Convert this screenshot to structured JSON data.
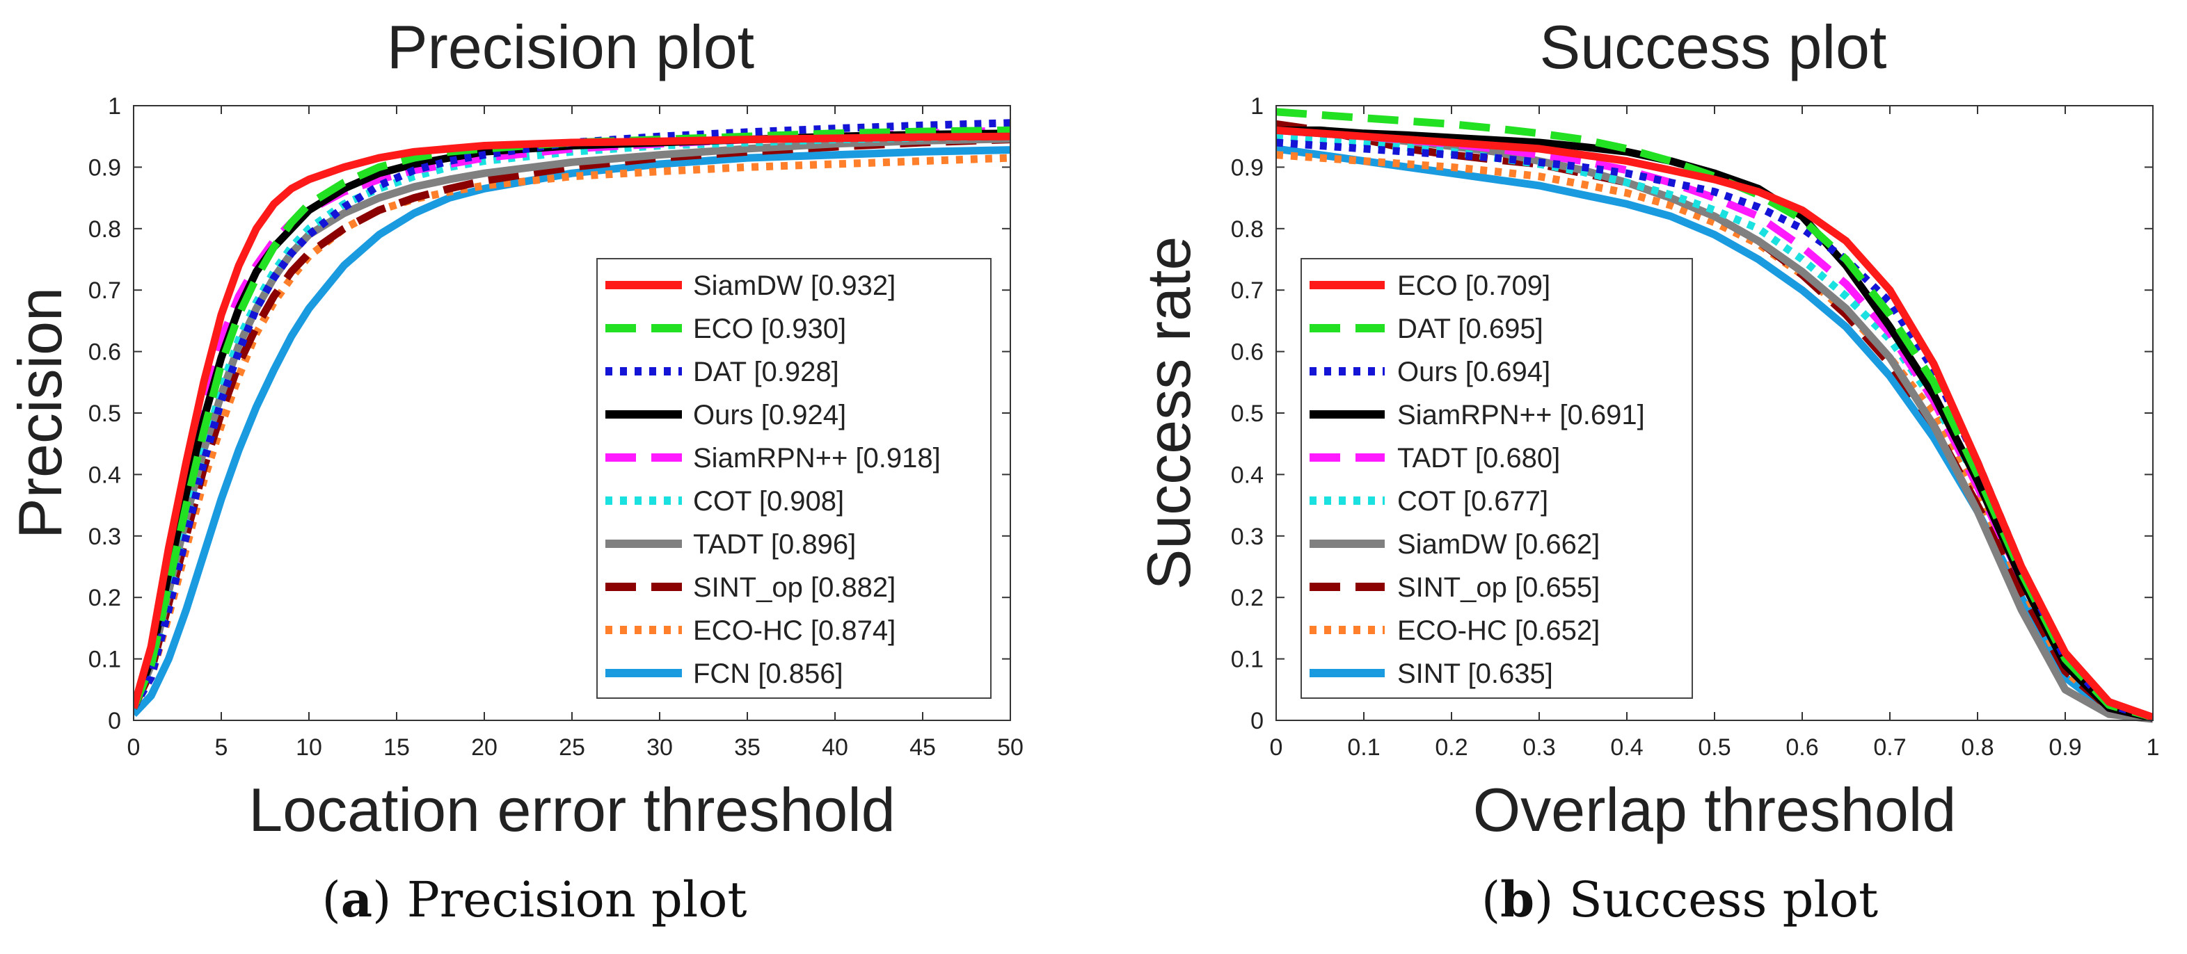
{
  "chart_data": [
    {
      "type": "line",
      "title": "Precision plot",
      "xlabel": "Location error threshold",
      "ylabel": "Precision",
      "xlim": [
        0,
        50
      ],
      "ylim": [
        0,
        1
      ],
      "x_ticks": [
        "0",
        "5",
        "10",
        "15",
        "20",
        "25",
        "30",
        "35",
        "40",
        "45",
        "50"
      ],
      "y_ticks": [
        "0",
        "0.1",
        "0.2",
        "0.3",
        "0.4",
        "0.5",
        "0.6",
        "0.7",
        "0.8",
        "0.9",
        "1"
      ],
      "grid": false,
      "legend_position": "bottom-right",
      "caption_letter": "a",
      "caption_text": "Precision plot",
      "x": [
        0,
        1,
        2,
        3,
        4,
        5,
        6,
        7,
        8,
        9,
        10,
        12,
        14,
        16,
        18,
        20,
        25,
        30,
        35,
        40,
        45,
        50
      ],
      "series": [
        {
          "name": "SiamDW [0.932]",
          "color": "#ff1a1a",
          "dash": "solid",
          "values": [
            0.02,
            0.12,
            0.28,
            0.42,
            0.55,
            0.66,
            0.74,
            0.8,
            0.84,
            0.865,
            0.88,
            0.9,
            0.915,
            0.925,
            0.93,
            0.935,
            0.94,
            0.942,
            0.945,
            0.947,
            0.949,
            0.95
          ]
        },
        {
          "name": "ECO [0.930]",
          "color": "#22e022",
          "dash": "longdash",
          "values": [
            0.02,
            0.09,
            0.22,
            0.35,
            0.47,
            0.58,
            0.66,
            0.72,
            0.77,
            0.81,
            0.84,
            0.875,
            0.9,
            0.915,
            0.925,
            0.93,
            0.94,
            0.945,
            0.95,
            0.955,
            0.958,
            0.96
          ]
        },
        {
          "name": "DAT [0.928]",
          "color": "#1414d6",
          "dash": "dot",
          "values": [
            0.02,
            0.07,
            0.18,
            0.3,
            0.42,
            0.52,
            0.6,
            0.67,
            0.72,
            0.76,
            0.79,
            0.835,
            0.87,
            0.895,
            0.91,
            0.92,
            0.94,
            0.95,
            0.957,
            0.963,
            0.968,
            0.972
          ]
        },
        {
          "name": "Ours [0.924]",
          "color": "#000000",
          "dash": "solid",
          "values": [
            0.02,
            0.1,
            0.24,
            0.37,
            0.49,
            0.59,
            0.67,
            0.73,
            0.77,
            0.8,
            0.83,
            0.865,
            0.89,
            0.905,
            0.915,
            0.925,
            0.935,
            0.94,
            0.945,
            0.95,
            0.953,
            0.955
          ]
        },
        {
          "name": "SiamRPN++ [0.918]",
          "color": "#ff1aff",
          "dash": "longdash",
          "values": [
            0.02,
            0.11,
            0.26,
            0.4,
            0.52,
            0.62,
            0.69,
            0.74,
            0.78,
            0.81,
            0.83,
            0.86,
            0.88,
            0.895,
            0.905,
            0.915,
            0.93,
            0.938,
            0.945,
            0.95,
            0.955,
            0.96
          ]
        },
        {
          "name": "COT [0.908]",
          "color": "#1ae0e0",
          "dash": "dot",
          "values": [
            0.02,
            0.08,
            0.2,
            0.32,
            0.44,
            0.54,
            0.62,
            0.68,
            0.73,
            0.77,
            0.8,
            0.84,
            0.865,
            0.885,
            0.9,
            0.91,
            0.925,
            0.935,
            0.94,
            0.945,
            0.948,
            0.95
          ]
        },
        {
          "name": "TADT [0.896]",
          "color": "#808080",
          "dash": "solid",
          "values": [
            0.02,
            0.09,
            0.21,
            0.33,
            0.44,
            0.53,
            0.61,
            0.67,
            0.72,
            0.76,
            0.79,
            0.825,
            0.85,
            0.868,
            0.88,
            0.89,
            0.908,
            0.92,
            0.93,
            0.938,
            0.943,
            0.946
          ]
        },
        {
          "name": "SINT_op [0.882]",
          "color": "#8b0000",
          "dash": "longdash",
          "values": [
            0.02,
            0.08,
            0.19,
            0.3,
            0.41,
            0.5,
            0.58,
            0.64,
            0.69,
            0.73,
            0.76,
            0.8,
            0.83,
            0.85,
            0.865,
            0.878,
            0.9,
            0.915,
            0.925,
            0.933,
            0.94,
            0.945
          ]
        },
        {
          "name": "ECO-HC [0.874]",
          "color": "#ff7f2a",
          "dash": "dot",
          "values": [
            0.02,
            0.07,
            0.17,
            0.28,
            0.39,
            0.48,
            0.56,
            0.63,
            0.68,
            0.72,
            0.755,
            0.8,
            0.83,
            0.848,
            0.86,
            0.87,
            0.885,
            0.893,
            0.9,
            0.905,
            0.91,
            0.915
          ]
        },
        {
          "name": "FCN [0.856]",
          "color": "#1a9be0",
          "dash": "solid",
          "values": [
            0.01,
            0.04,
            0.1,
            0.18,
            0.27,
            0.36,
            0.44,
            0.51,
            0.57,
            0.625,
            0.67,
            0.74,
            0.79,
            0.825,
            0.85,
            0.865,
            0.89,
            0.905,
            0.915,
            0.92,
            0.925,
            0.928
          ]
        }
      ]
    },
    {
      "type": "line",
      "title": "Success plot",
      "xlabel": "Overlap threshold",
      "ylabel": "Success rate",
      "xlim": [
        0,
        1
      ],
      "ylim": [
        0,
        1
      ],
      "x_ticks": [
        "0",
        "0.1",
        "0.2",
        "0.3",
        "0.4",
        "0.5",
        "0.6",
        "0.7",
        "0.8",
        "0.9",
        "1"
      ],
      "y_ticks": [
        "0",
        "0.1",
        "0.2",
        "0.3",
        "0.4",
        "0.5",
        "0.6",
        "0.7",
        "0.8",
        "0.9",
        "1"
      ],
      "grid": false,
      "legend_position": "bottom-left",
      "caption_letter": "b",
      "caption_text": "Success plot",
      "x": [
        0,
        0.05,
        0.1,
        0.15,
        0.2,
        0.25,
        0.3,
        0.35,
        0.4,
        0.45,
        0.5,
        0.55,
        0.6,
        0.65,
        0.7,
        0.75,
        0.8,
        0.85,
        0.9,
        0.95,
        1
      ],
      "series": [
        {
          "name": "ECO [0.709]",
          "color": "#ff1a1a",
          "dash": "solid",
          "values": [
            0.96,
            0.955,
            0.95,
            0.945,
            0.94,
            0.935,
            0.93,
            0.92,
            0.91,
            0.895,
            0.88,
            0.86,
            0.83,
            0.78,
            0.7,
            0.58,
            0.42,
            0.25,
            0.11,
            0.03,
            0.005
          ]
        },
        {
          "name": "DAT [0.695]",
          "color": "#22e022",
          "dash": "longdash",
          "values": [
            0.99,
            0.985,
            0.98,
            0.975,
            0.97,
            0.963,
            0.955,
            0.945,
            0.93,
            0.91,
            0.885,
            0.855,
            0.815,
            0.75,
            0.66,
            0.55,
            0.4,
            0.24,
            0.1,
            0.025,
            0.005
          ]
        },
        {
          "name": "Ours [0.694]",
          "color": "#1414d6",
          "dash": "dot",
          "values": [
            0.94,
            0.935,
            0.93,
            0.925,
            0.92,
            0.915,
            0.908,
            0.9,
            0.89,
            0.875,
            0.86,
            0.835,
            0.8,
            0.75,
            0.68,
            0.57,
            0.42,
            0.25,
            0.1,
            0.025,
            0.005
          ]
        },
        {
          "name": "SiamRPN++ [0.691]",
          "color": "#000000",
          "dash": "solid",
          "values": [
            0.96,
            0.96,
            0.955,
            0.952,
            0.948,
            0.944,
            0.94,
            0.933,
            0.925,
            0.91,
            0.89,
            0.865,
            0.82,
            0.74,
            0.64,
            0.53,
            0.39,
            0.23,
            0.09,
            0.02,
            0.004
          ]
        },
        {
          "name": "TADT [0.680]",
          "color": "#ff1aff",
          "dash": "longdash",
          "values": [
            0.96,
            0.955,
            0.95,
            0.944,
            0.938,
            0.93,
            0.92,
            0.91,
            0.895,
            0.875,
            0.85,
            0.82,
            0.77,
            0.71,
            0.63,
            0.52,
            0.38,
            0.23,
            0.09,
            0.02,
            0.004
          ]
        },
        {
          "name": "COT [0.677]",
          "color": "#1ae0e0",
          "dash": "dot",
          "values": [
            0.95,
            0.945,
            0.94,
            0.932,
            0.925,
            0.915,
            0.905,
            0.892,
            0.875,
            0.855,
            0.83,
            0.8,
            0.75,
            0.69,
            0.62,
            0.52,
            0.39,
            0.24,
            0.1,
            0.025,
            0.005
          ]
        },
        {
          "name": "SiamDW [0.662]",
          "color": "#808080",
          "dash": "solid",
          "values": [
            0.96,
            0.955,
            0.95,
            0.942,
            0.934,
            0.925,
            0.91,
            0.895,
            0.875,
            0.85,
            0.82,
            0.78,
            0.73,
            0.67,
            0.59,
            0.48,
            0.34,
            0.18,
            0.05,
            0.01,
            0.002
          ]
        },
        {
          "name": "SINT_op [0.655]",
          "color": "#8b0000",
          "dash": "longdash",
          "values": [
            0.97,
            0.96,
            0.945,
            0.93,
            0.92,
            0.912,
            0.905,
            0.89,
            0.875,
            0.85,
            0.82,
            0.78,
            0.725,
            0.66,
            0.58,
            0.48,
            0.35,
            0.21,
            0.08,
            0.02,
            0.004
          ]
        },
        {
          "name": "ECO-HC [0.652]",
          "color": "#ff7f2a",
          "dash": "dot",
          "values": [
            0.92,
            0.915,
            0.91,
            0.905,
            0.9,
            0.893,
            0.885,
            0.872,
            0.858,
            0.838,
            0.81,
            0.775,
            0.725,
            0.665,
            0.59,
            0.5,
            0.37,
            0.22,
            0.08,
            0.02,
            0.004
          ]
        },
        {
          "name": "SINT [0.635]",
          "color": "#1a9be0",
          "dash": "solid",
          "values": [
            0.93,
            0.92,
            0.91,
            0.9,
            0.89,
            0.88,
            0.87,
            0.855,
            0.84,
            0.82,
            0.79,
            0.75,
            0.7,
            0.64,
            0.56,
            0.46,
            0.34,
            0.2,
            0.07,
            0.015,
            0.003
          ]
        }
      ]
    }
  ]
}
